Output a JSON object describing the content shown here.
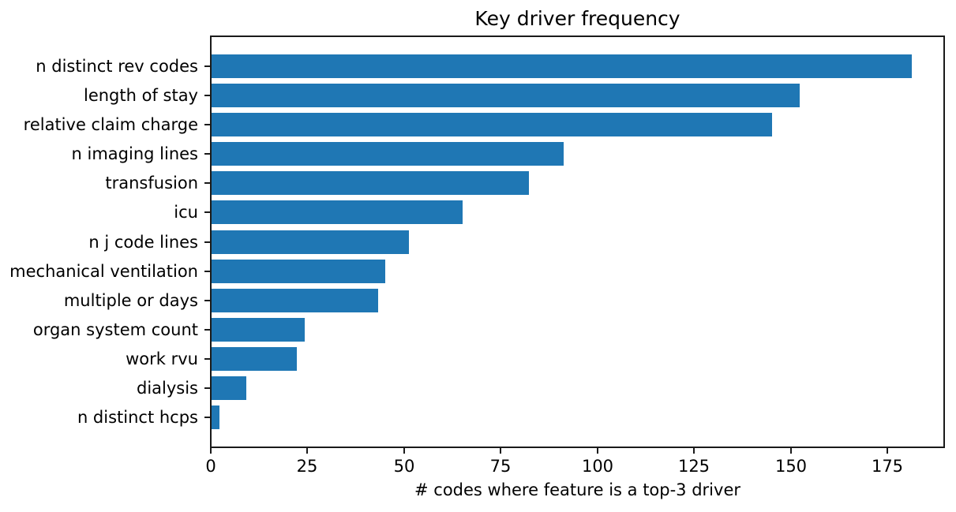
{
  "chart_data": {
    "type": "bar",
    "orientation": "horizontal",
    "title": "Key driver frequency",
    "xlabel": "# codes where feature is a top-3 driver",
    "ylabel": "",
    "categories": [
      "n distinct rev codes",
      "length of stay",
      "relative claim charge",
      "n imaging lines",
      "transfusion",
      "icu",
      "n j code lines",
      "mechanical ventilation",
      "multiple or days",
      "organ system count",
      "work rvu",
      "dialysis",
      "n distinct hcps"
    ],
    "values": [
      181,
      152,
      145,
      91,
      82,
      65,
      51,
      45,
      43,
      24,
      22,
      9,
      2
    ],
    "xticks": [
      0,
      25,
      50,
      75,
      100,
      125,
      150,
      175
    ],
    "xlim": [
      0,
      190.05
    ],
    "grid": false,
    "legend": false,
    "bar_color": "#1f77b4",
    "axis_color": "#1a1a1a",
    "text_color": "#000000",
    "background": "#ffffff"
  }
}
